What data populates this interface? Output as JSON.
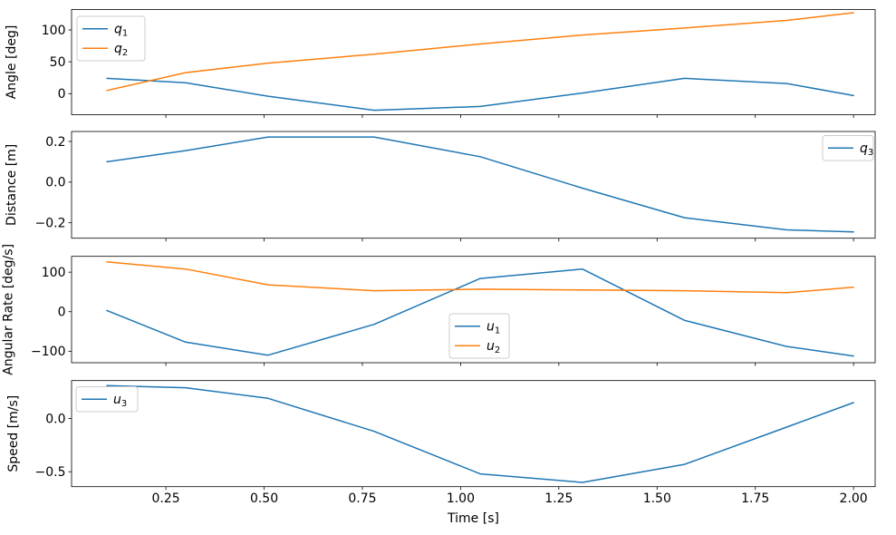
{
  "chart_data": {
    "type": "line",
    "background": "#ffffff",
    "palette": {
      "blue": "#1f77b4",
      "orange": "#ff7f0e",
      "axis": "#000000",
      "legend_border": "#cccccc"
    },
    "x_axis": {
      "label": "Time [s]",
      "xlim": [
        0.01,
        2.055
      ],
      "ticks": [
        0.25,
        0.5,
        0.75,
        1.0,
        1.25,
        1.5,
        1.75,
        2.0
      ],
      "tick_labels": [
        "0.25",
        "0.50",
        "0.75",
        "1.00",
        "1.25",
        "1.50",
        "1.75",
        "2.00"
      ]
    },
    "subplots": [
      {
        "id": "angle",
        "ylabel": "Angle [deg]",
        "ylim": [
          -33,
          132
        ],
        "yticks": [
          {
            "value": 0,
            "label": "0"
          },
          {
            "value": 50,
            "label": "50"
          },
          {
            "value": 100,
            "label": "100"
          }
        ],
        "legend": {
          "loc": "upper-left",
          "entries": [
            {
              "base": "q",
              "sub": "1",
              "series": "q1",
              "color": "#1f77b4"
            },
            {
              "base": "q",
              "sub": "2",
              "series": "q2",
              "color": "#ff7f0e"
            }
          ]
        },
        "series": [
          {
            "name": "q1",
            "color": "#1f77b4",
            "points": [
              [
                0.1,
                24
              ],
              [
                0.3,
                17
              ],
              [
                0.51,
                -4
              ],
              [
                0.78,
                -26
              ],
              [
                1.05,
                -20
              ],
              [
                1.31,
                1
              ],
              [
                1.57,
                24
              ],
              [
                1.83,
                16
              ],
              [
                2.0,
                -3
              ]
            ]
          },
          {
            "name": "q2",
            "color": "#ff7f0e",
            "points": [
              [
                0.1,
                5
              ],
              [
                0.3,
                33
              ],
              [
                0.51,
                48
              ],
              [
                0.78,
                62
              ],
              [
                1.05,
                78
              ],
              [
                1.31,
                92
              ],
              [
                1.57,
                103
              ],
              [
                1.83,
                115
              ],
              [
                2.0,
                127
              ]
            ]
          }
        ]
      },
      {
        "id": "distance",
        "ylabel": "Distance [m]",
        "ylim": [
          -0.276,
          0.249
        ],
        "yticks": [
          {
            "value": -0.2,
            "label": "−0.2"
          },
          {
            "value": 0.0,
            "label": "0.0"
          },
          {
            "value": 0.2,
            "label": "0.2"
          }
        ],
        "legend": {
          "loc": "upper-right",
          "entries": [
            {
              "base": "q",
              "sub": "3",
              "series": "q3",
              "color": "#1f77b4"
            }
          ]
        },
        "series": [
          {
            "name": "q3",
            "color": "#1f77b4",
            "points": [
              [
                0.1,
                0.1
              ],
              [
                0.3,
                0.155
              ],
              [
                0.51,
                0.222
              ],
              [
                0.78,
                0.222
              ],
              [
                1.05,
                0.125
              ],
              [
                1.31,
                -0.03
              ],
              [
                1.57,
                -0.175
              ],
              [
                1.83,
                -0.235
              ],
              [
                2.0,
                -0.245
              ]
            ]
          }
        ]
      },
      {
        "id": "angular-rate",
        "ylabel": "Angular Rate [deg/s]",
        "ylim": [
          -129,
          140
        ],
        "yticks": [
          {
            "value": -100,
            "label": "−100"
          },
          {
            "value": 0,
            "label": "0"
          },
          {
            "value": 100,
            "label": "100"
          }
        ],
        "legend": {
          "loc": "lower-center",
          "entries": [
            {
              "base": "u",
              "sub": "1",
              "series": "u1",
              "color": "#1f77b4"
            },
            {
              "base": "u",
              "sub": "2",
              "series": "u2",
              "color": "#ff7f0e"
            }
          ]
        },
        "series": [
          {
            "name": "u1",
            "color": "#1f77b4",
            "points": [
              [
                0.1,
                3
              ],
              [
                0.3,
                -77
              ],
              [
                0.51,
                -110
              ],
              [
                0.78,
                -32
              ],
              [
                1.05,
                84
              ],
              [
                1.31,
                108
              ],
              [
                1.57,
                -22
              ],
              [
                1.83,
                -88
              ],
              [
                2.0,
                -112
              ]
            ]
          },
          {
            "name": "u2",
            "color": "#ff7f0e",
            "points": [
              [
                0.1,
                126
              ],
              [
                0.3,
                108
              ],
              [
                0.51,
                68
              ],
              [
                0.78,
                53
              ],
              [
                1.05,
                57
              ],
              [
                1.31,
                55
              ],
              [
                1.57,
                53
              ],
              [
                1.83,
                48
              ],
              [
                2.0,
                62
              ]
            ]
          }
        ]
      },
      {
        "id": "speed",
        "ylabel": "Speed [m/s]",
        "ylim": [
          -0.64,
          0.357
        ],
        "yticks": [
          {
            "value": -0.5,
            "label": "−0.5"
          },
          {
            "value": 0.0,
            "label": "0.0"
          }
        ],
        "legend": {
          "loc": "upper-left",
          "entries": [
            {
              "base": "u",
              "sub": "3",
              "series": "u3",
              "color": "#1f77b4"
            }
          ]
        },
        "series": [
          {
            "name": "u3",
            "color": "#1f77b4",
            "points": [
              [
                0.1,
                0.31
              ],
              [
                0.3,
                0.29
              ],
              [
                0.51,
                0.19
              ],
              [
                0.78,
                -0.12
              ],
              [
                1.05,
                -0.52
              ],
              [
                1.31,
                -0.6
              ],
              [
                1.57,
                -0.43
              ],
              [
                1.83,
                -0.08
              ],
              [
                2.0,
                0.15
              ]
            ]
          }
        ]
      }
    ]
  }
}
